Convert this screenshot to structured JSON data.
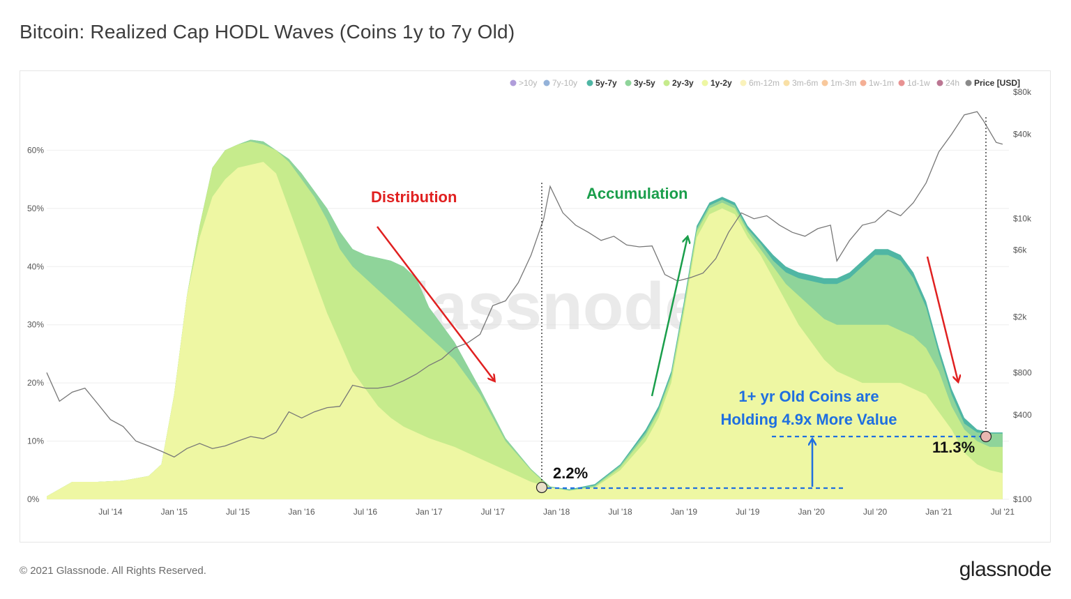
{
  "title": "Bitcoin: Realized Cap HODL Waves (Coins 1y to 7y Old)",
  "footer": "© 2021 Glassnode. All Rights Reserved.",
  "brand": "glassnode",
  "watermark": "glassnode",
  "chart_data": {
    "type": "area",
    "title": "Bitcoin: Realized Cap HODL Waves (Coins 1y to 7y Old)",
    "x_ticks": [
      "Jul '14",
      "Jan '15",
      "Jul '15",
      "Jan '16",
      "Jul '16",
      "Jan '17",
      "Jul '17",
      "Jan '18",
      "Jul '18",
      "Jan '19",
      "Jul '19",
      "Jan '20",
      "Jul '20",
      "Jan '21",
      "Jul '21"
    ],
    "y_left_ticks": [
      "0%",
      "10%",
      "20%",
      "30%",
      "40%",
      "50%",
      "60%"
    ],
    "y_right_ticks": [
      "$100",
      "$400",
      "$800",
      "$2k",
      "$6k",
      "$10k",
      "$40k",
      "$80k"
    ],
    "y_right_scale": "log",
    "legend": [
      {
        "label": ">10y",
        "color": "#7b5cc2",
        "active": false
      },
      {
        "label": "7y-10y",
        "color": "#4d7fc0",
        "active": false
      },
      {
        "label": "5y-7y",
        "color": "#4fb6a4",
        "active": true
      },
      {
        "label": "3y-5y",
        "color": "#8fd49a",
        "active": true
      },
      {
        "label": "2y-3y",
        "color": "#c6eb8c",
        "active": true
      },
      {
        "label": "1y-2y",
        "color": "#eef7a3",
        "active": true
      },
      {
        "label": "6m-12m",
        "color": "#f6e98e",
        "active": false
      },
      {
        "label": "3m-6m",
        "color": "#f5cc6a",
        "active": false
      },
      {
        "label": "1m-3m",
        "color": "#f3a35a",
        "active": false
      },
      {
        "label": "1w-1m",
        "color": "#ec7a4e",
        "active": false
      },
      {
        "label": "1d-1w",
        "color": "#d94a4a",
        "active": false
      },
      {
        "label": "24h",
        "color": "#8e1b4a",
        "active": false
      },
      {
        "label": "Price [USD]",
        "color": "#8a8a8a",
        "active": true
      }
    ],
    "legend_position": "top-right",
    "series": [
      {
        "name": "1y-2y",
        "color": "#eef7a3",
        "x": [
          2014.0,
          2014.2,
          2014.4,
          2014.6,
          2014.8,
          2014.9,
          2015.0,
          2015.1,
          2015.2,
          2015.3,
          2015.4,
          2015.5,
          2015.6,
          2015.7,
          2015.8,
          2015.9,
          2016.0,
          2016.1,
          2016.2,
          2016.3,
          2016.4,
          2016.5,
          2016.6,
          2016.7,
          2016.8,
          2016.9,
          2017.0,
          2017.2,
          2017.4,
          2017.6,
          2017.8,
          2017.95,
          2018.1,
          2018.3,
          2018.5,
          2018.7,
          2018.8,
          2018.9,
          2019.0,
          2019.1,
          2019.2,
          2019.3,
          2019.4,
          2019.45,
          2019.5,
          2019.6,
          2019.7,
          2019.8,
          2019.9,
          2020.0,
          2020.1,
          2020.2,
          2020.3,
          2020.4,
          2020.5,
          2020.6,
          2020.7,
          2020.8,
          2020.9,
          2021.0,
          2021.1,
          2021.2,
          2021.3,
          2021.4,
          2021.5
        ],
        "y": [
          0.5,
          3,
          3,
          3.2,
          4,
          6,
          18,
          35,
          45,
          52,
          55,
          57,
          57.5,
          58,
          56,
          50,
          44,
          38,
          32,
          27,
          22,
          19,
          16,
          14,
          12.5,
          11.5,
          10.5,
          9,
          7,
          5,
          3,
          2,
          1.5,
          2,
          5,
          10,
          14,
          20,
          32,
          45,
          49,
          50,
          49,
          47,
          45,
          42,
          38,
          34,
          30,
          27,
          24,
          22,
          21,
          20,
          20,
          20,
          20,
          19,
          18,
          15,
          12,
          8,
          6,
          5,
          4.5
        ]
      },
      {
        "name": "2y-3y",
        "color": "#c6eb8c",
        "x": [
          2014.0,
          2014.2,
          2014.4,
          2014.6,
          2014.8,
          2014.9,
          2015.0,
          2015.1,
          2015.2,
          2015.3,
          2015.4,
          2015.5,
          2015.6,
          2015.7,
          2015.8,
          2015.9,
          2016.0,
          2016.1,
          2016.2,
          2016.3,
          2016.4,
          2016.5,
          2016.6,
          2016.7,
          2016.8,
          2016.9,
          2017.0,
          2017.2,
          2017.4,
          2017.6,
          2017.8,
          2017.95,
          2018.1,
          2018.3,
          2018.5,
          2018.7,
          2018.8,
          2018.9,
          2019.0,
          2019.1,
          2019.2,
          2019.3,
          2019.4,
          2019.45,
          2019.5,
          2019.6,
          2019.7,
          2019.8,
          2019.9,
          2020.0,
          2020.1,
          2020.2,
          2020.3,
          2020.4,
          2020.5,
          2020.6,
          2020.7,
          2020.8,
          2020.9,
          2021.0,
          2021.1,
          2021.2,
          2021.3,
          2021.4,
          2021.5
        ],
        "y": [
          0.5,
          3,
          3,
          3.2,
          4,
          6,
          18,
          35,
          47,
          57,
          60,
          61,
          61.5,
          61,
          60,
          58,
          55,
          52,
          48,
          43,
          40,
          38,
          36,
          34,
          32,
          30,
          28,
          24,
          18,
          10,
          5,
          2,
          1.5,
          2.2,
          5.5,
          11,
          15,
          21,
          33,
          46,
          50,
          51,
          50,
          48,
          46,
          43,
          40,
          37,
          35,
          33,
          31,
          30,
          30,
          30,
          30,
          30,
          29,
          28,
          26,
          22,
          16,
          12,
          10,
          9,
          9
        ]
      },
      {
        "name": "3y-5y",
        "color": "#8fd49a",
        "x": [
          2014.0,
          2014.2,
          2014.4,
          2014.6,
          2014.8,
          2014.9,
          2015.0,
          2015.1,
          2015.2,
          2015.3,
          2015.4,
          2015.5,
          2015.6,
          2015.7,
          2015.8,
          2015.9,
          2016.0,
          2016.1,
          2016.2,
          2016.3,
          2016.4,
          2016.5,
          2016.6,
          2016.7,
          2016.8,
          2016.9,
          2017.0,
          2017.2,
          2017.4,
          2017.6,
          2017.8,
          2017.95,
          2018.1,
          2018.3,
          2018.5,
          2018.7,
          2018.8,
          2018.9,
          2019.0,
          2019.1,
          2019.2,
          2019.3,
          2019.4,
          2019.45,
          2019.5,
          2019.6,
          2019.7,
          2019.8,
          2019.9,
          2020.0,
          2020.1,
          2020.2,
          2020.3,
          2020.4,
          2020.5,
          2020.6,
          2020.7,
          2020.8,
          2020.9,
          2021.0,
          2021.1,
          2021.2,
          2021.3,
          2021.4,
          2021.5
        ],
        "y": [
          0.5,
          3,
          3,
          3.2,
          4,
          6,
          18,
          35,
          47,
          57,
          60,
          61,
          61.8,
          61.5,
          60,
          58.5,
          56,
          53,
          50,
          46,
          43,
          42,
          41.5,
          41,
          40,
          38,
          33,
          27,
          19,
          10.5,
          5.2,
          2.2,
          1.6,
          2.4,
          5.8,
          11.5,
          15.5,
          21.5,
          33.5,
          46.5,
          50.5,
          51.5,
          50.5,
          48.5,
          46.5,
          44,
          41,
          39,
          38,
          37.5,
          37,
          37,
          38,
          40,
          42,
          42,
          41,
          38,
          33,
          25,
          18,
          13,
          11.5,
          11.3,
          11.3
        ]
      },
      {
        "name": "5y-7y",
        "color": "#4fb6a4",
        "x": [
          2014.0,
          2014.2,
          2014.4,
          2014.6,
          2014.8,
          2014.9,
          2015.0,
          2015.1,
          2015.2,
          2015.3,
          2015.4,
          2015.5,
          2015.6,
          2015.7,
          2015.8,
          2015.9,
          2016.0,
          2016.1,
          2016.2,
          2016.3,
          2016.4,
          2016.5,
          2016.6,
          2016.7,
          2016.8,
          2016.9,
          2017.0,
          2017.2,
          2017.4,
          2017.6,
          2017.8,
          2017.95,
          2018.1,
          2018.3,
          2018.5,
          2018.7,
          2018.8,
          2018.9,
          2019.0,
          2019.1,
          2019.2,
          2019.3,
          2019.4,
          2019.45,
          2019.5,
          2019.6,
          2019.7,
          2019.8,
          2019.9,
          2020.0,
          2020.1,
          2020.2,
          2020.3,
          2020.4,
          2020.5,
          2020.6,
          2020.7,
          2020.8,
          2020.9,
          2021.0,
          2021.1,
          2021.2,
          2021.3,
          2021.4,
          2021.5
        ],
        "y": [
          0.5,
          3,
          3,
          3.2,
          4,
          6,
          18,
          35,
          47,
          57,
          60,
          61,
          61.8,
          61.5,
          60,
          58.5,
          56,
          53,
          50,
          46,
          43,
          42,
          41.5,
          41,
          40,
          38,
          33,
          27,
          19,
          10.5,
          5.2,
          2.2,
          1.7,
          2.6,
          6,
          12,
          16,
          22,
          34,
          47,
          51,
          52,
          51,
          49,
          47,
          44.5,
          42,
          40,
          39,
          38.5,
          38,
          38,
          39,
          41,
          43,
          43,
          42,
          39,
          34,
          26,
          19,
          14,
          12,
          11.5,
          11.5
        ]
      }
    ],
    "price_series": {
      "name": "Price [USD]",
      "x": [
        2014.0,
        2014.1,
        2014.2,
        2014.3,
        2014.4,
        2014.5,
        2014.6,
        2014.7,
        2014.8,
        2014.9,
        2015.0,
        2015.1,
        2015.2,
        2015.3,
        2015.4,
        2015.5,
        2015.6,
        2015.7,
        2015.8,
        2015.9,
        2016.0,
        2016.1,
        2016.2,
        2016.3,
        2016.4,
        2016.5,
        2016.6,
        2016.7,
        2016.8,
        2016.9,
        2017.0,
        2017.1,
        2017.2,
        2017.3,
        2017.4,
        2017.5,
        2017.6,
        2017.7,
        2017.8,
        2017.9,
        2017.95,
        2018.05,
        2018.15,
        2018.25,
        2018.35,
        2018.45,
        2018.55,
        2018.65,
        2018.75,
        2018.85,
        2018.95,
        2019.05,
        2019.15,
        2019.25,
        2019.35,
        2019.45,
        2019.55,
        2019.65,
        2019.75,
        2019.85,
        2019.95,
        2020.05,
        2020.15,
        2020.2,
        2020.3,
        2020.4,
        2020.5,
        2020.6,
        2020.7,
        2020.8,
        2020.9,
        2021.0,
        2021.1,
        2021.2,
        2021.3,
        2021.35,
        2021.45,
        2021.5
      ],
      "y": [
        800,
        500,
        580,
        620,
        480,
        370,
        330,
        260,
        240,
        220,
        200,
        230,
        250,
        230,
        240,
        260,
        280,
        270,
        300,
        420,
        380,
        420,
        450,
        460,
        650,
        620,
        620,
        640,
        700,
        780,
        900,
        1000,
        1200,
        1300,
        1500,
        2400,
        2600,
        3500,
        5500,
        10000,
        17000,
        11000,
        9000,
        8000,
        7000,
        7500,
        6500,
        6300,
        6400,
        4000,
        3600,
        3800,
        4100,
        5200,
        8000,
        11000,
        10000,
        10500,
        9000,
        8000,
        7500,
        8500,
        9000,
        5000,
        7000,
        9000,
        9500,
        11500,
        10500,
        13000,
        18000,
        30000,
        40000,
        55000,
        58000,
        50000,
        35000,
        34000
      ]
    },
    "annotations": [
      {
        "text": "Distribution",
        "color": "#e02020"
      },
      {
        "text": "Accumulation",
        "color": "#1a9e4b"
      },
      {
        "text": "2.2%",
        "color": "#111111"
      },
      {
        "text": "11.3%",
        "color": "#111111"
      },
      {
        "text": "1+ yr Old Coins are",
        "color": "#1f6fe0"
      },
      {
        "text": "Holding 4.9x More Value",
        "color": "#1f6fe0"
      }
    ],
    "ylim": [
      0,
      70
    ],
    "y_right_lim": [
      100,
      80000
    ],
    "xlim": [
      2014.0,
      2021.55
    ],
    "grid": true
  }
}
